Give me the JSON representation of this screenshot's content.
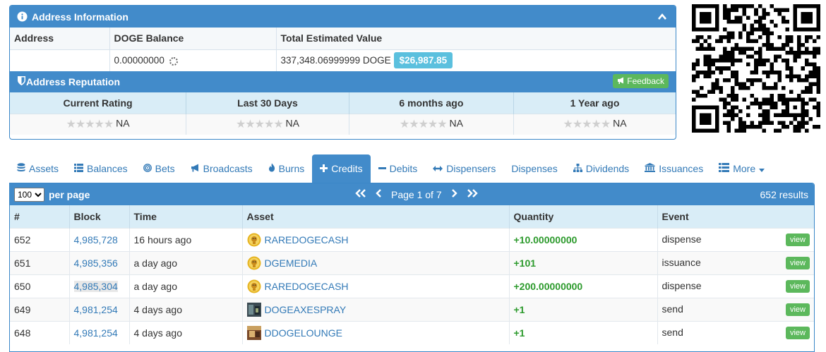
{
  "address_panel": {
    "title": "Address Information",
    "columns": [
      "Address",
      "DOGE Balance",
      "Total Estimated Value"
    ],
    "address_value": "",
    "doge_balance": "0.00000000",
    "total_value": "337,348.06999999 DOGE",
    "usd_value": "$26,987.85"
  },
  "reputation": {
    "title": "Address Reputation",
    "feedback_label": "Feedback",
    "columns": [
      "Current Rating",
      "Last 30 Days",
      "6 months ago",
      "1 Year ago"
    ],
    "values": [
      "NA",
      "NA",
      "NA",
      "NA"
    ]
  },
  "tabs": [
    {
      "label": "Assets",
      "icon": "database-icon"
    },
    {
      "label": "Balances",
      "icon": "list-icon"
    },
    {
      "label": "Bets",
      "icon": "bullseye-icon"
    },
    {
      "label": "Broadcasts",
      "icon": "bullhorn-icon"
    },
    {
      "label": "Burns",
      "icon": "fire-icon"
    },
    {
      "label": "Credits",
      "icon": "plus-icon",
      "active": true
    },
    {
      "label": "Debits",
      "icon": "minus-icon"
    },
    {
      "label": "Dispensers",
      "icon": "arrows-h-icon"
    },
    {
      "label": "Dispenses",
      "icon": ""
    },
    {
      "label": "Dividends",
      "icon": "sitemap-icon"
    },
    {
      "label": "Issuances",
      "icon": "bank-icon"
    },
    {
      "label": "More",
      "icon": "list-icon"
    }
  ],
  "list": {
    "per_page_value": "100",
    "per_page_label": "per page",
    "page_text": "Page 1 of 7",
    "results": "652 results",
    "columns": [
      "#",
      "Block",
      "Time",
      "Asset",
      "Quantity",
      "Event"
    ],
    "view_label": "view",
    "rows": [
      {
        "num": "652",
        "block": "4,985,728",
        "time": "16 hours ago",
        "asset": "RAREDOGECASH",
        "qty": "+10.00000000",
        "event": "dispense",
        "icon": "doge-coin"
      },
      {
        "num": "651",
        "block": "4,985,356",
        "time": "a day ago",
        "asset": "DGEMEDIA",
        "qty": "+101",
        "event": "issuance",
        "icon": "doge-coin"
      },
      {
        "num": "650",
        "block": "4,985,304",
        "time": "a day ago",
        "asset": "RAREDOGECASH",
        "qty": "+200.00000000",
        "event": "dispense",
        "icon": "doge-coin"
      },
      {
        "num": "649",
        "block": "4,981,254",
        "time": "4 days ago",
        "asset": "DOGEAXESPRAY",
        "qty": "+1",
        "event": "send",
        "icon": "dark-photo"
      },
      {
        "num": "648",
        "block": "4,981,254",
        "time": "4 days ago",
        "asset": "DDOGELOUNGE",
        "qty": "+1",
        "event": "send",
        "icon": "warm-photo"
      }
    ]
  },
  "colors": {
    "primary": "#428bca",
    "header_light": "#d9edf7",
    "info_badge": "#5bc0de",
    "success": "#5cb85c",
    "link": "#337ab7",
    "qty_green": "#2c9a2c"
  }
}
